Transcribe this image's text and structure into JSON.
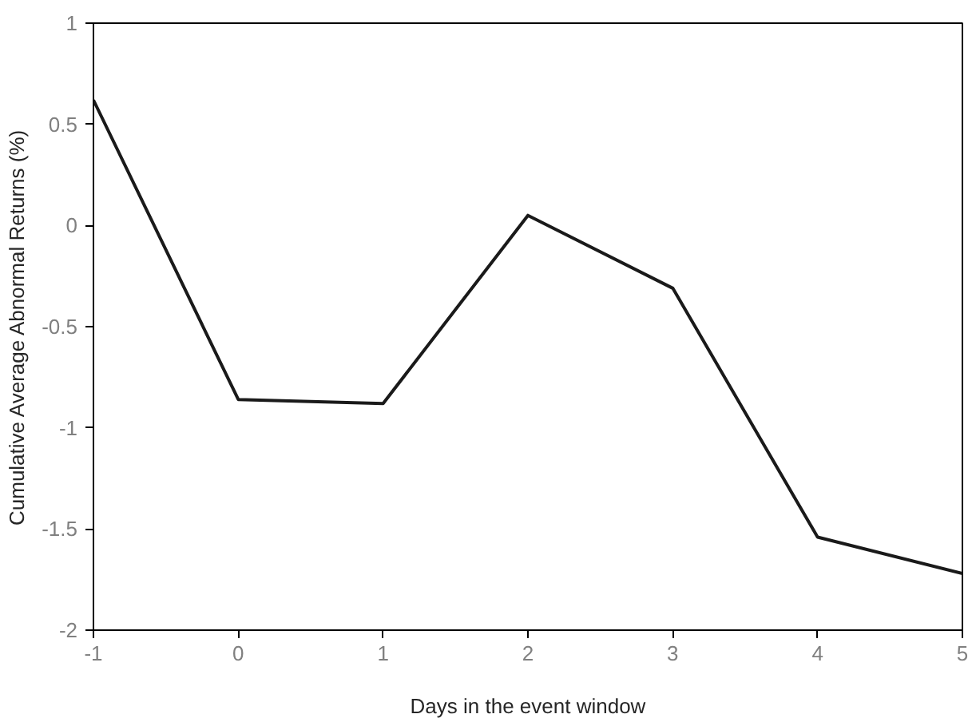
{
  "chart_data": {
    "type": "line",
    "xlabel": "Days in the event window",
    "ylabel": "Cumulative Average Abnormal Returns (%)",
    "x": [
      -1,
      0,
      1,
      2,
      3,
      4,
      5
    ],
    "series": [
      {
        "color": "#1a1a1a",
        "values": [
          0.62,
          -0.86,
          -0.88,
          0.05,
          -0.31,
          -1.54,
          -1.72
        ]
      }
    ],
    "xlim": [
      -1,
      5
    ],
    "ylim": [
      -2,
      1
    ],
    "xticks": [
      -1,
      0,
      1,
      2,
      3,
      4,
      5
    ],
    "yticks": [
      -2,
      -1.5,
      -1,
      -0.5,
      0,
      0.5,
      1
    ],
    "grid": false,
    "marker": "none",
    "line_style": "solid"
  }
}
